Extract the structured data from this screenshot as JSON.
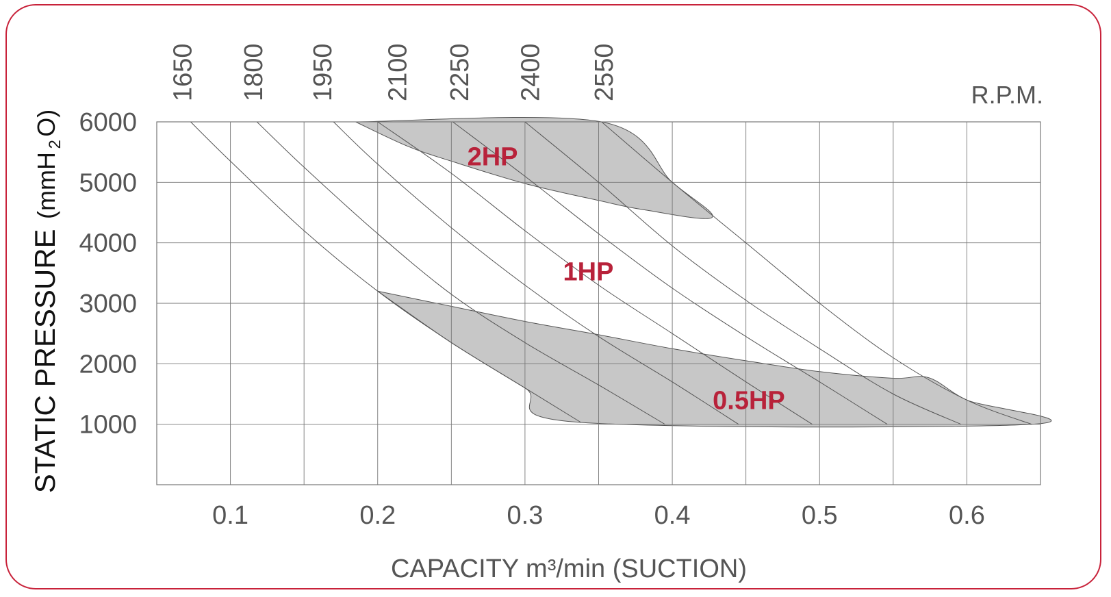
{
  "chart_data": {
    "type": "line",
    "title": "",
    "xlabel": "CAPACITY m³/min (SUCTION)",
    "ylabel_main": "STATIC PRESSURE",
    "ylabel_unit": "(mmH",
    "ylabel_sub": "2",
    "ylabel_close": "O)",
    "top_axis_label": "R.P.M.",
    "xlim": [
      0.05,
      0.65
    ],
    "ylim": [
      0,
      6000
    ],
    "x_ticks": [
      0.1,
      0.2,
      0.3,
      0.4,
      0.5,
      0.6
    ],
    "x_tick_labels": [
      "0.1",
      "0.2",
      "0.3",
      "0.4",
      "0.5",
      "0.6"
    ],
    "x_grid": [
      0.1,
      0.15,
      0.2,
      0.25,
      0.3,
      0.35,
      0.4,
      0.45,
      0.5,
      0.55,
      0.6
    ],
    "y_ticks": [
      1000,
      2000,
      3000,
      4000,
      5000,
      6000
    ],
    "y_tick_labels": [
      "1000",
      "2000",
      "3000",
      "4000",
      "5000",
      "6000"
    ],
    "grid": true,
    "rpm_labels": [
      {
        "label": "1650",
        "x": 0.067
      },
      {
        "label": "1800",
        "x": 0.115
      },
      {
        "label": "1950",
        "x": 0.162
      },
      {
        "label": "2100",
        "x": 0.213
      },
      {
        "label": "2250",
        "x": 0.255
      },
      {
        "label": "2400",
        "x": 0.303
      },
      {
        "label": "2550",
        "x": 0.353
      }
    ],
    "series": [
      {
        "points": [
          [
            0.073,
            6000
          ],
          [
            0.1,
            5350
          ],
          [
            0.15,
            4200
          ],
          [
            0.2,
            3200
          ],
          [
            0.25,
            2350
          ],
          [
            0.3,
            1600
          ],
          [
            0.338,
            1030
          ]
        ]
      },
      {
        "points": [
          [
            0.118,
            6000
          ],
          [
            0.15,
            5250
          ],
          [
            0.2,
            4150
          ],
          [
            0.25,
            3150
          ],
          [
            0.3,
            2350
          ],
          [
            0.35,
            1650
          ],
          [
            0.395,
            1000
          ]
        ]
      },
      {
        "points": [
          [
            0.17,
            6000
          ],
          [
            0.2,
            5300
          ],
          [
            0.25,
            4250
          ],
          [
            0.3,
            3300
          ],
          [
            0.35,
            2450
          ],
          [
            0.4,
            1700
          ],
          [
            0.445,
            1000
          ]
        ]
      },
      {
        "points": [
          [
            0.2,
            6000
          ],
          [
            0.25,
            5150
          ],
          [
            0.3,
            4200
          ],
          [
            0.35,
            3300
          ],
          [
            0.4,
            2500
          ],
          [
            0.45,
            1700
          ],
          [
            0.495,
            1000
          ]
        ]
      },
      {
        "points": [
          [
            0.251,
            6000
          ],
          [
            0.3,
            5100
          ],
          [
            0.35,
            4150
          ],
          [
            0.4,
            3250
          ],
          [
            0.45,
            2450
          ],
          [
            0.5,
            1700
          ],
          [
            0.546,
            1000
          ]
        ]
      },
      {
        "points": [
          [
            0.3,
            6000
          ],
          [
            0.35,
            5000
          ],
          [
            0.4,
            3950
          ],
          [
            0.45,
            3050
          ],
          [
            0.5,
            2250
          ],
          [
            0.55,
            1500
          ],
          [
            0.596,
            1000
          ]
        ]
      },
      {
        "points": [
          [
            0.352,
            6000
          ],
          [
            0.4,
            5000
          ],
          [
            0.45,
            4000
          ],
          [
            0.5,
            3000
          ],
          [
            0.55,
            2100
          ],
          [
            0.6,
            1400
          ],
          [
            0.644,
            1000
          ]
        ]
      }
    ],
    "regions": [
      {
        "label": "2HP",
        "label_pos": [
          0.278,
          5280
        ],
        "points": [
          [
            0.185,
            6000
          ],
          [
            0.352,
            6000
          ],
          [
            0.4,
            5000
          ],
          [
            0.427,
            4420
          ],
          [
            0.38,
            4550
          ],
          [
            0.35,
            4700
          ],
          [
            0.3,
            4980
          ],
          [
            0.25,
            5350
          ],
          [
            0.22,
            5600
          ],
          [
            0.185,
            6000
          ]
        ]
      },
      {
        "label": "1HP",
        "label_pos": [
          0.343,
          3380
        ]
      },
      {
        "label": "0.5HP",
        "label_pos": [
          0.452,
          1250
        ],
        "points": [
          [
            0.2,
            3200
          ],
          [
            0.25,
            2950
          ],
          [
            0.3,
            2700
          ],
          [
            0.35,
            2480
          ],
          [
            0.4,
            2250
          ],
          [
            0.45,
            2050
          ],
          [
            0.5,
            1870
          ],
          [
            0.55,
            1760
          ],
          [
            0.574,
            1770
          ],
          [
            0.6,
            1400
          ],
          [
            0.644,
            1000
          ],
          [
            0.338,
            1030
          ],
          [
            0.3,
            1600
          ],
          [
            0.25,
            2350
          ],
          [
            0.2,
            3200
          ]
        ]
      }
    ],
    "colors": {
      "grid": "#777777",
      "curves": "#555555",
      "region_fill": "#c7c7c7",
      "zone_label": "#b8223a",
      "text": "#555555",
      "ylabel": "#111111",
      "frame": "#c8223a"
    }
  }
}
